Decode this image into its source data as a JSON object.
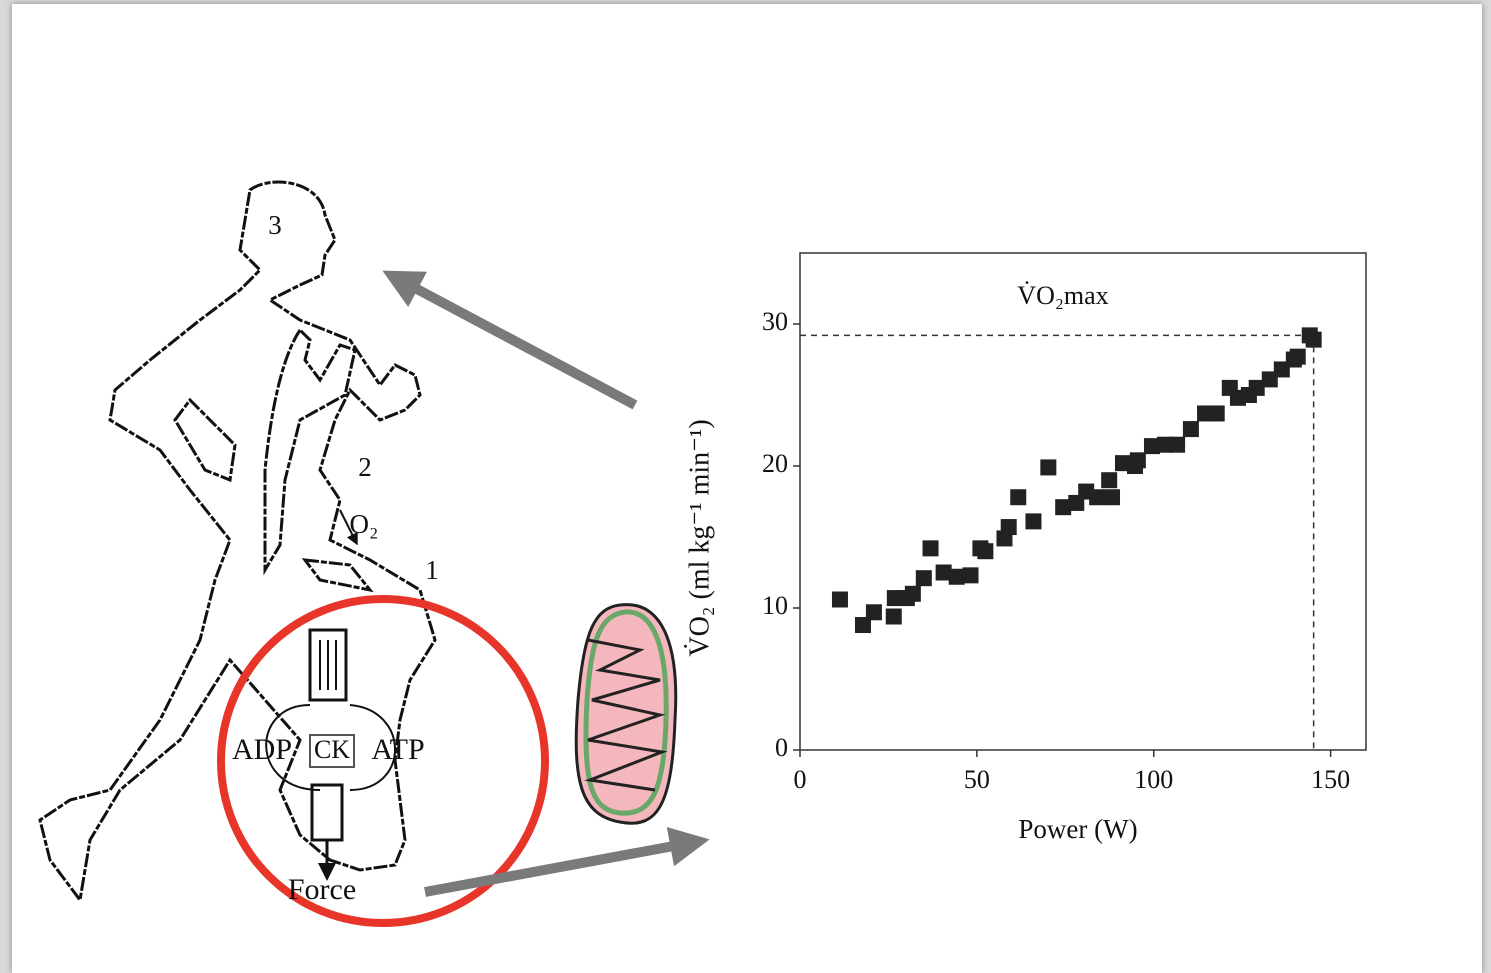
{
  "diagram": {
    "labels": [
      "3",
      "2",
      "O₂",
      "1",
      "ADP",
      "CK",
      "ATP",
      "Force"
    ]
  },
  "chart_data": {
    "type": "scatter",
    "annotation": "V̇O₂max",
    "x_label": "Power (W)",
    "y_label": "V̇O₂ (ml kg⁻¹ min⁻¹)",
    "x": [
      11.3,
      17.8,
      20.9,
      26.5,
      26.8,
      30.2,
      31.9,
      35.0,
      36.9,
      40.6,
      44.3,
      48.2,
      51.0,
      52.4,
      57.8,
      59.0,
      61.7,
      66.0,
      70.2,
      74.4,
      78.1,
      80.9,
      84.0,
      87.4,
      88.2,
      91.3,
      94.7,
      95.5,
      99.5,
      103.2,
      106.6,
      110.5,
      114.5,
      117.8,
      121.5,
      123.8,
      126.9,
      129.1,
      132.8,
      136.2,
      139.6,
      140.7,
      144.1,
      145.2
    ],
    "series": [
      {
        "color": "#222222",
        "values": [
          10.6,
          8.8,
          9.7,
          9.4,
          10.7,
          10.7,
          11.0,
          12.1,
          14.2,
          12.5,
          12.2,
          12.3,
          14.2,
          14.0,
          14.9,
          15.7,
          17.8,
          16.1,
          19.9,
          17.1,
          17.4,
          18.2,
          17.8,
          19.0,
          17.8,
          20.2,
          20.0,
          20.4,
          21.4,
          21.5,
          21.5,
          22.6,
          23.7,
          23.7,
          25.5,
          24.8,
          25.0,
          25.5,
          26.1,
          26.8,
          27.5,
          27.7,
          29.2,
          28.9
        ]
      }
    ],
    "reference_lines": {
      "x": 145.2,
      "y": 29.2
    },
    "xlim": [
      0,
      160
    ],
    "xticks": [
      0,
      50,
      100,
      150
    ],
    "ylim": [
      0,
      35
    ],
    "yticks": [
      0,
      10,
      20,
      30
    ]
  }
}
